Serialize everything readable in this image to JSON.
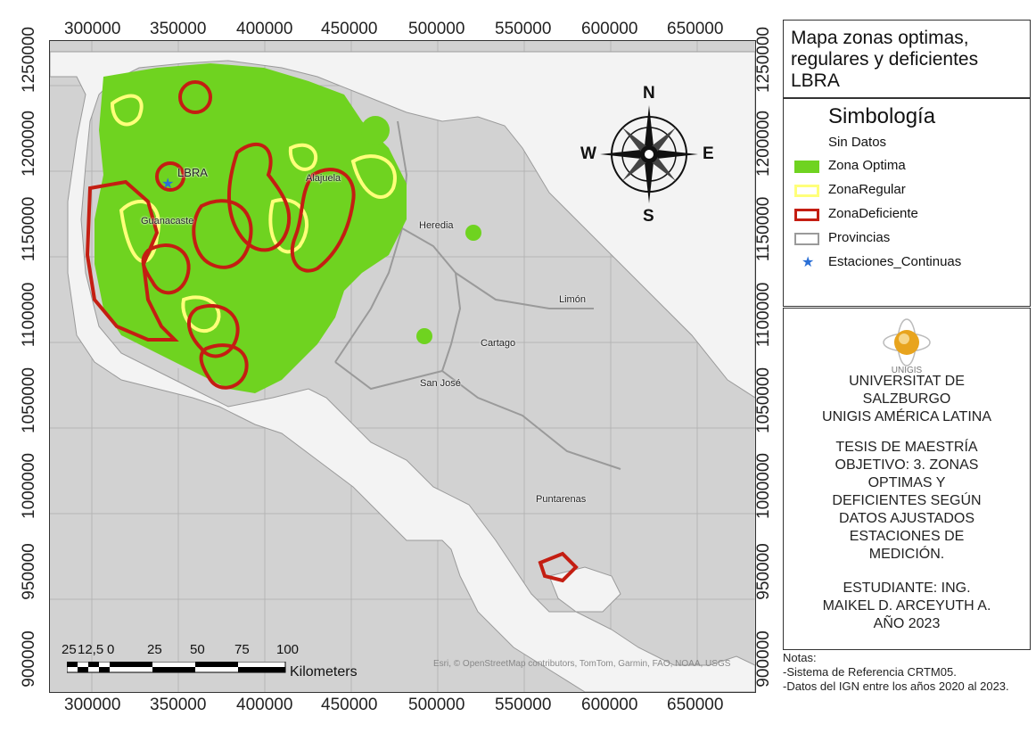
{
  "map": {
    "title": "Mapa zonas optimas, regulares y deficientes LBRA",
    "x_ticks": [
      "300000",
      "350000",
      "400000",
      "450000",
      "500000",
      "550000",
      "600000",
      "650000"
    ],
    "y_ticks": [
      "1250000",
      "1200000",
      "1150000",
      "1100000",
      "1050000",
      "1000000",
      "950000",
      "900000"
    ],
    "place_labels": {
      "guanacaste": "Guanacaste",
      "alajuela": "Alajuela",
      "heredia": "Heredia",
      "limon": "Limón",
      "cartago": "Cartago",
      "san_jose": "San José",
      "puntarenas": "Puntarenas"
    },
    "station_label": "LBRA",
    "compass": {
      "north": "N",
      "south": "S",
      "east": "E",
      "west": "W"
    },
    "scale_bar": {
      "labels": [
        "25",
        "12,5",
        "0",
        "25",
        "50",
        "75",
        "100"
      ],
      "units": "Kilometers"
    },
    "attribution": "Esri, © OpenStreetMap contributors, TomTom, Garmin, FAO, NOAA, USGS"
  },
  "legend": {
    "title": "Simbología",
    "items": [
      {
        "label": "Sin Datos",
        "type": "none"
      },
      {
        "label": "Zona Optima",
        "type": "fill",
        "color": "#6fd320"
      },
      {
        "label": "ZonaRegular",
        "type": "outline",
        "color": "#ffff7a"
      },
      {
        "label": "ZonaDeficiente",
        "type": "outline",
        "color": "#c41e12"
      },
      {
        "label": "Provincias",
        "type": "outline",
        "color": "#9a9a9a"
      },
      {
        "label": "Estaciones_Continuas",
        "type": "star",
        "color": "#2a6fd6"
      }
    ]
  },
  "info": {
    "logo_text": "UNIGIS",
    "university": [
      "UNIVERSITAT DE",
      "SALZBURGO",
      "UNIGIS AMÉRICA LATINA"
    ],
    "thesis": [
      "TESIS DE MAESTRÍA",
      "OBJETIVO: 3. ZONAS",
      "OPTIMAS Y",
      "DEFICIENTES SEGÚN",
      "DATOS AJUSTADOS",
      "ESTACIONES DE",
      "MEDICIÓN."
    ],
    "student": [
      "ESTUDIANTE: ING.",
      "MAIKEL D. ARCEYUTH A.",
      "AÑO 2023"
    ]
  },
  "notes": [
    "Notas:",
    "-Sistema de Referencia CRTM05.",
    "-Datos del IGN entre los años 2020 al 2023."
  ],
  "colors": {
    "sea": "#d2d2d2",
    "land": "#f3f3f3",
    "optima": "#6fd320",
    "regular": "#ffff7a",
    "deficiente": "#c41e12",
    "provincias": "#9a9a9a"
  }
}
